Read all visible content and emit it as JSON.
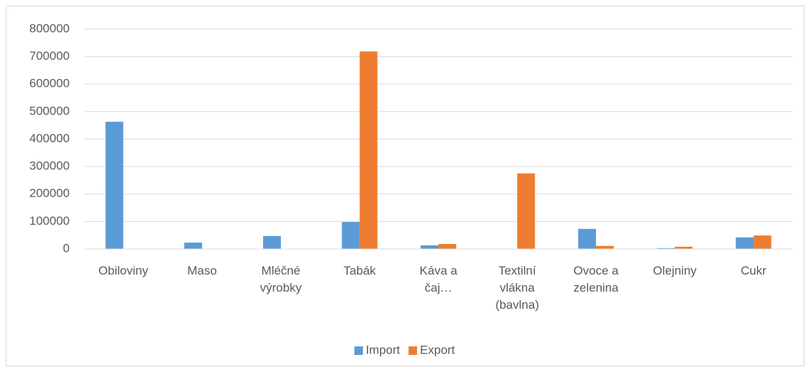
{
  "chart_data": {
    "type": "bar",
    "categories": [
      "Obiloviny",
      "Maso",
      "Mléčné výrobky",
      "Tabák",
      "Káva a čaj…",
      "Textilní vlákna (bavlna)",
      "Ovoce a zelenina",
      "Olejniny",
      "Cukr"
    ],
    "series": [
      {
        "name": "Import",
        "color": "#5b9bd5",
        "values": [
          463000,
          23000,
          47000,
          98000,
          13000,
          1000,
          73000,
          3000,
          42000
        ]
      },
      {
        "name": "Export",
        "color": "#ed7d31",
        "values": [
          1000,
          0,
          0,
          719000,
          18000,
          275000,
          11000,
          8000,
          49000
        ]
      }
    ],
    "ylim": [
      0,
      800000
    ],
    "yticks": [
      0,
      100000,
      200000,
      300000,
      400000,
      500000,
      600000,
      700000,
      800000
    ],
    "grid": true,
    "legend": "bottom"
  }
}
